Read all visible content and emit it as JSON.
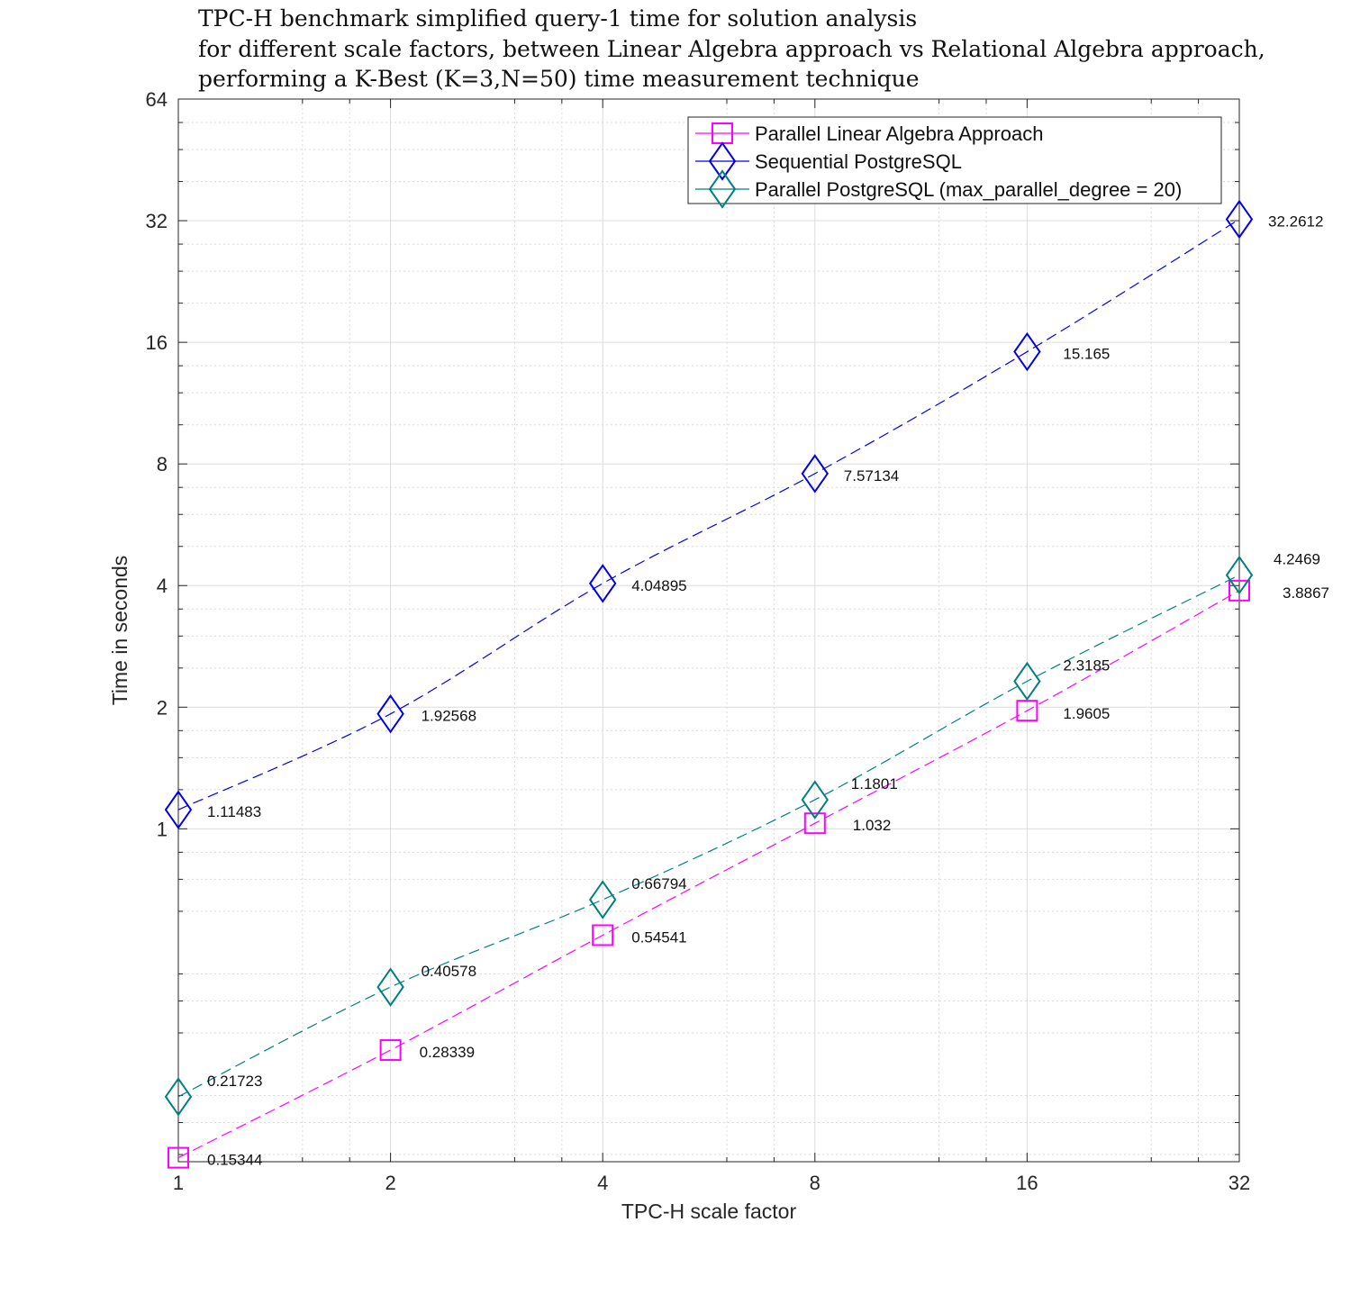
{
  "chart_data": {
    "type": "line",
    "title": [
      "TPC-H benchmark simplified query-1 time for solution analysis",
      "for different scale factors, between Linear Algebra approach vs Relational Algebra approach,",
      "performing a K-Best (K=3,N=50) time measurement technique"
    ],
    "xlabel": "TPC-H scale factor",
    "ylabel": "Time in seconds",
    "x_scale": "log2",
    "y_scale": "log2",
    "xlim": [
      1,
      32
    ],
    "ylim": [
      0.15,
      64
    ],
    "x_ticks": [
      1,
      2,
      4,
      8,
      16,
      32
    ],
    "x_tick_labels": [
      "1",
      "2",
      "4",
      "8",
      "16",
      "32"
    ],
    "y_ticks": [
      1,
      2,
      4,
      8,
      16,
      32,
      64
    ],
    "y_tick_labels": [
      "1",
      "2",
      "4",
      "8",
      "16",
      "32",
      "64"
    ],
    "grid": true,
    "legend_position": "top-right",
    "x": [
      1,
      2,
      4,
      8,
      16,
      32
    ],
    "series": [
      {
        "name": "Parallel Linear Algebra Approach",
        "color": "#ff00ff",
        "marker": "square",
        "line_style": "dashed",
        "values": [
          0.15344,
          0.28339,
          0.54541,
          1.032,
          1.9605,
          3.8867
        ],
        "labels": [
          "0.15344",
          "0.28339",
          "0.54541",
          "1.032",
          "1.9605",
          "3.8867"
        ]
      },
      {
        "name": "Sequential PostgreSQL",
        "color": "#0000ee",
        "marker": "diamond",
        "line_style": "dashed",
        "values": [
          1.11483,
          1.92568,
          4.04895,
          7.57134,
          15.165,
          32.2612
        ],
        "labels": [
          "1.11483",
          "1.92568",
          "4.04895",
          "7.57134",
          "15.165",
          "32.2612"
        ]
      },
      {
        "name": "Parallel PostgreSQL (max_parallel_degree = 20)",
        "color": "#008080",
        "marker": "diamond",
        "line_style": "dashed",
        "values": [
          0.21723,
          0.40578,
          0.66794,
          1.1801,
          2.3185,
          4.2469
        ],
        "labels": [
          "0.21723",
          "0.40578",
          "0.66794",
          "1.1801",
          "2.3185",
          "4.2469"
        ]
      }
    ]
  }
}
